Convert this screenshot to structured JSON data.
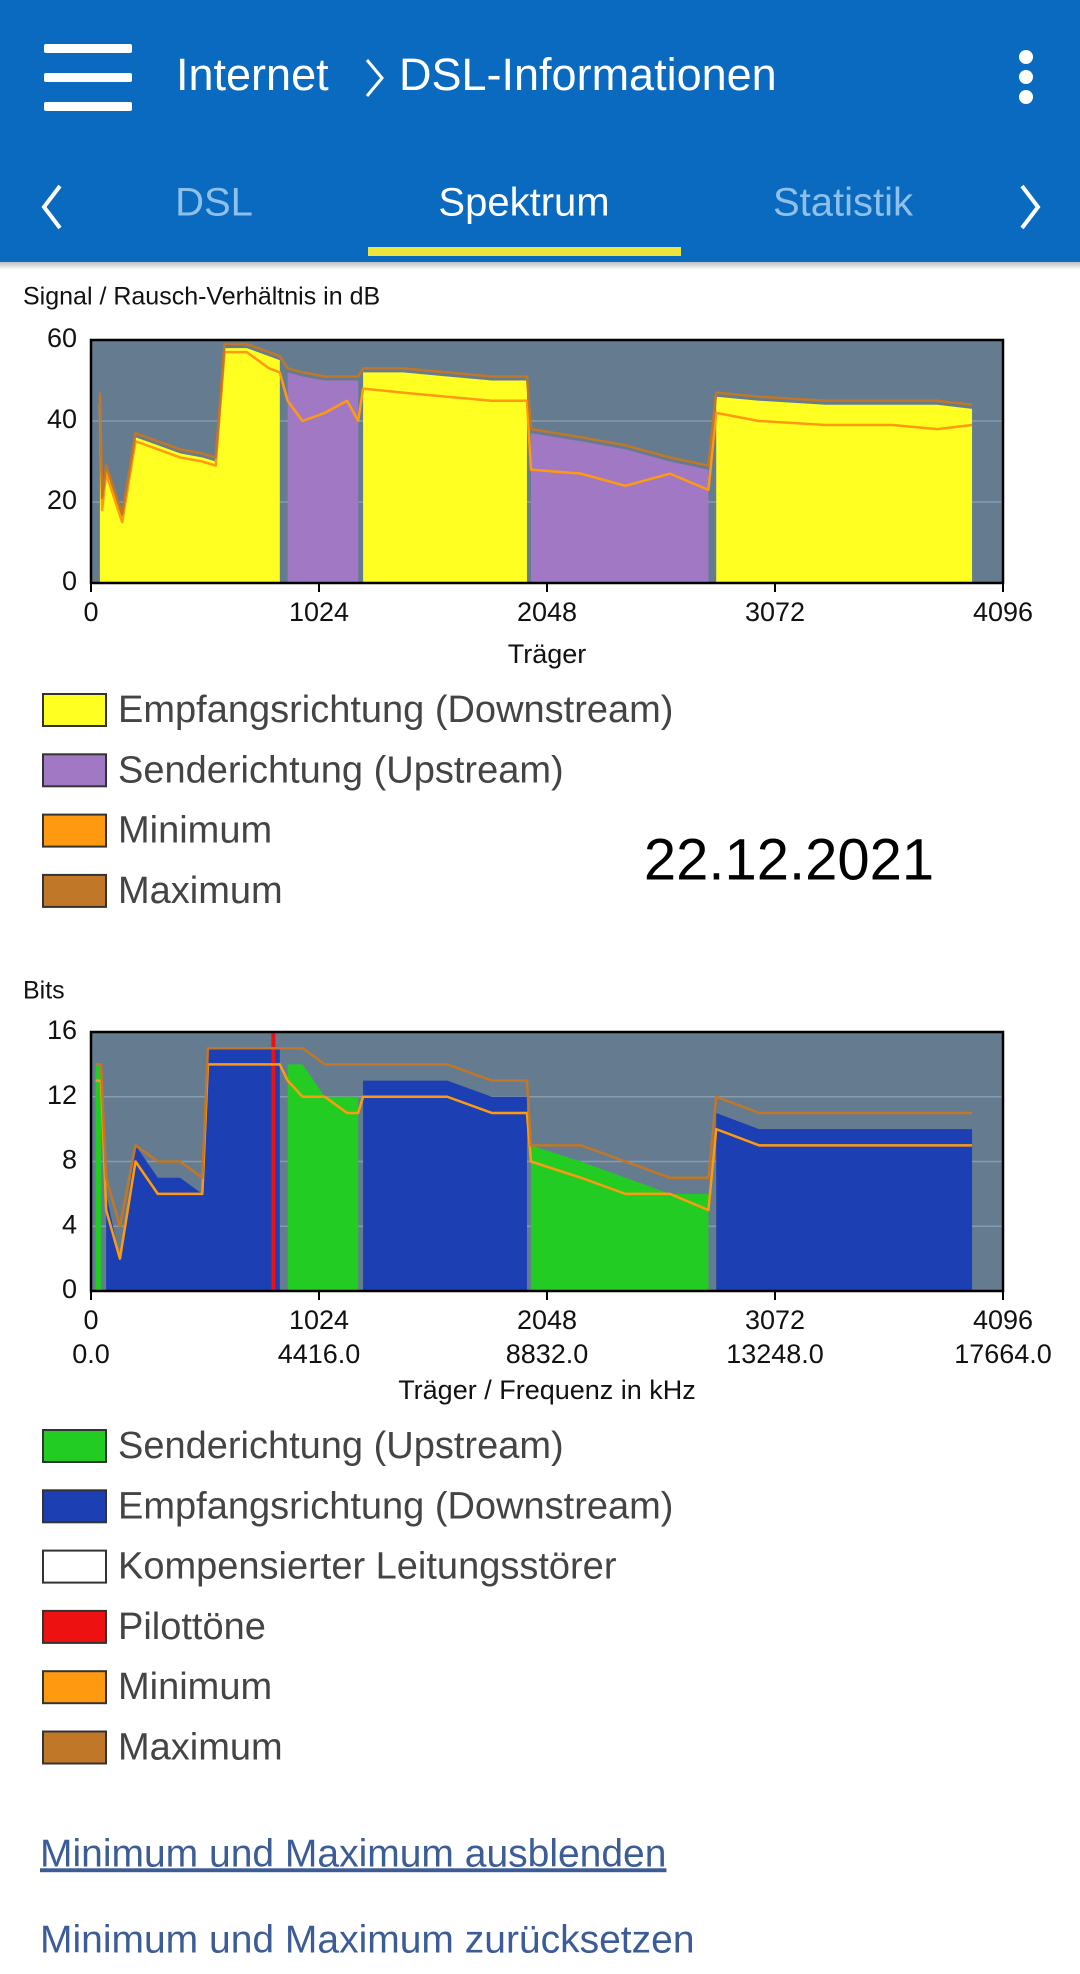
{
  "header": {
    "title": "Internet",
    "subtitle": "DSL-Informationen"
  },
  "tabs": [
    "DSL",
    "Spektrum",
    "Statistik"
  ],
  "chart_data": [
    {
      "type": "area",
      "title": "Signal / Rausch-Verhältnis in dB",
      "xlabel": "Träger",
      "x": [
        40,
        50,
        68,
        140,
        200,
        300,
        400,
        500,
        560,
        600,
        700,
        800,
        848,
        883,
        950,
        1050,
        1150,
        1200,
        1222,
        1400,
        1600,
        1800,
        1958,
        1976,
        2200,
        2400,
        2600,
        2773,
        2808,
        3000,
        3300,
        3600,
        3800,
        3957
      ],
      "xlim": [
        0,
        4096
      ],
      "xticks": [
        0,
        1024,
        2048,
        3072,
        4096
      ],
      "ylim": [
        0,
        60
      ],
      "yticks": [
        0,
        20,
        40,
        60
      ],
      "grid": true,
      "series": [
        {
          "name": "Empfangsrichtung (Downstream)",
          "color": "#ffff22",
          "values": [
            46,
            20,
            28,
            16,
            36,
            34,
            32,
            31,
            30,
            58,
            58,
            56,
            55,
            null,
            null,
            null,
            null,
            null,
            52,
            52,
            51,
            50,
            50,
            null,
            null,
            null,
            null,
            null,
            46,
            45,
            44,
            44,
            44,
            43
          ]
        },
        {
          "name": "Senderichtung (Upstream)",
          "color": "#a078c4",
          "values": [
            null,
            null,
            null,
            null,
            null,
            null,
            null,
            null,
            null,
            null,
            null,
            null,
            null,
            52,
            51,
            50,
            50,
            50,
            null,
            null,
            null,
            null,
            null,
            37,
            35,
            33,
            30,
            28,
            null,
            null,
            null,
            null,
            null,
            null
          ]
        },
        {
          "name": "Minimum",
          "color": "#ff9a10",
          "style": "line",
          "values": [
            44,
            18,
            27,
            15,
            35,
            33,
            31,
            30,
            29,
            57,
            57,
            53,
            52,
            45,
            40,
            42,
            45,
            40,
            48,
            47,
            46,
            45,
            45,
            28,
            27,
            24,
            27,
            23,
            42,
            40,
            39,
            39,
            38,
            39
          ]
        },
        {
          "name": "Maximum",
          "color": "#c07828",
          "style": "line",
          "values": [
            47,
            21,
            29,
            17,
            37,
            35,
            33,
            32,
            31,
            59,
            59,
            57,
            56,
            53,
            52,
            51,
            51,
            51,
            53,
            53,
            52,
            51,
            51,
            38,
            36,
            34,
            31,
            29,
            47,
            46,
            45,
            45,
            45,
            44
          ]
        }
      ]
    },
    {
      "type": "area",
      "title": "Bits",
      "xlabel": "Träger / Frequenz in kHz",
      "x": [
        20,
        45,
        68,
        130,
        200,
        300,
        400,
        500,
        525,
        700,
        819,
        848,
        883,
        950,
        1050,
        1150,
        1200,
        1222,
        1400,
        1600,
        1800,
        1958,
        1976,
        2200,
        2400,
        2600,
        2773,
        2808,
        3000,
        3300,
        3600,
        3957
      ],
      "xlim": [
        0,
        4096
      ],
      "xticks": [
        0,
        1024,
        2048,
        3072,
        4096
      ],
      "x2lim": [
        0,
        17664
      ],
      "x2ticks": [
        {
          "value": 0,
          "label": "0.0"
        },
        {
          "value": 4416,
          "label": "4416.0"
        },
        {
          "value": 8832,
          "label": "8832.0"
        },
        {
          "value": 13248,
          "label": "13248.0"
        },
        {
          "value": 17664,
          "label": "17664.0"
        }
      ],
      "ylim": [
        0,
        16
      ],
      "yticks": [
        0,
        4,
        8,
        12,
        16
      ],
      "grid": true,
      "series": [
        {
          "name": "Senderichtung (Upstream)",
          "color": "#22cc22",
          "values": [
            14,
            14,
            null,
            null,
            null,
            null,
            null,
            null,
            null,
            null,
            null,
            null,
            14,
            14,
            12,
            12,
            12,
            null,
            null,
            null,
            null,
            null,
            9,
            8,
            7,
            6,
            6,
            null,
            null,
            null,
            null,
            null
          ]
        },
        {
          "name": "Empfangsrichtung (Downstream)",
          "color": "#1c3fb4",
          "values": [
            null,
            null,
            6,
            2,
            9,
            7,
            7,
            6,
            15,
            15,
            15,
            15,
            null,
            null,
            null,
            null,
            null,
            13,
            13,
            13,
            12,
            12,
            null,
            null,
            null,
            null,
            null,
            11,
            10,
            10,
            10,
            10
          ]
        },
        {
          "name": "Kompensierter Leitungsstörer",
          "color": "#ffffff",
          "values": [
            null,
            null,
            null,
            null,
            null,
            null,
            null,
            null,
            null,
            null,
            null,
            null,
            null,
            null,
            null,
            null,
            null,
            null,
            null,
            null,
            null,
            null,
            null,
            null,
            null,
            null,
            null,
            null,
            null,
            null,
            null,
            null
          ]
        },
        {
          "name": "Pilottöne",
          "color": "#ee1111",
          "style": "bar",
          "values": [
            null,
            null,
            null,
            null,
            null,
            null,
            null,
            null,
            null,
            null,
            16,
            null,
            null,
            null,
            null,
            null,
            null,
            null,
            null,
            null,
            null,
            null,
            null,
            null,
            null,
            null,
            null,
            null,
            null,
            null,
            null,
            null
          ]
        },
        {
          "name": "Minimum",
          "color": "#ff9a10",
          "style": "line",
          "values": [
            13,
            13,
            5,
            2,
            8,
            6,
            6,
            6,
            14,
            14,
            14,
            14,
            13,
            12,
            12,
            11,
            11,
            12,
            12,
            12,
            11,
            11,
            8,
            7,
            6,
            6,
            5,
            10,
            9,
            9,
            9,
            9
          ]
        },
        {
          "name": "Maximum",
          "color": "#c07828",
          "style": "line",
          "values": [
            14,
            14,
            7,
            4,
            9,
            8,
            8,
            7,
            15,
            15,
            15,
            15,
            15,
            15,
            14,
            14,
            14,
            14,
            14,
            14,
            13,
            13,
            9,
            9,
            8,
            7,
            7,
            12,
            11,
            11,
            11,
            11
          ]
        }
      ]
    }
  ],
  "annotation": "22.12.2021",
  "links": [
    "Minimum und Maximum ausblenden",
    "Minimum und Maximum zurücksetzen"
  ]
}
